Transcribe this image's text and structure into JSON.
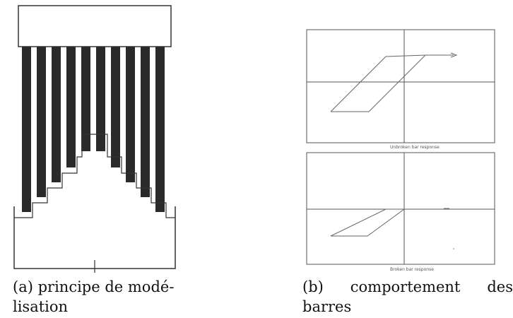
{
  "figure_a": {
    "caption_label": "(a)",
    "caption_line1": "principe de modé-",
    "caption_line2": "lisation"
  },
  "figure_b": {
    "panel_top_label": "Unbroken bar response",
    "panel_bottom_label": "Broken bar response",
    "caption_label": "(b)",
    "caption_word1": "comportement",
    "caption_word2": "des",
    "caption_line2": "barres"
  }
}
